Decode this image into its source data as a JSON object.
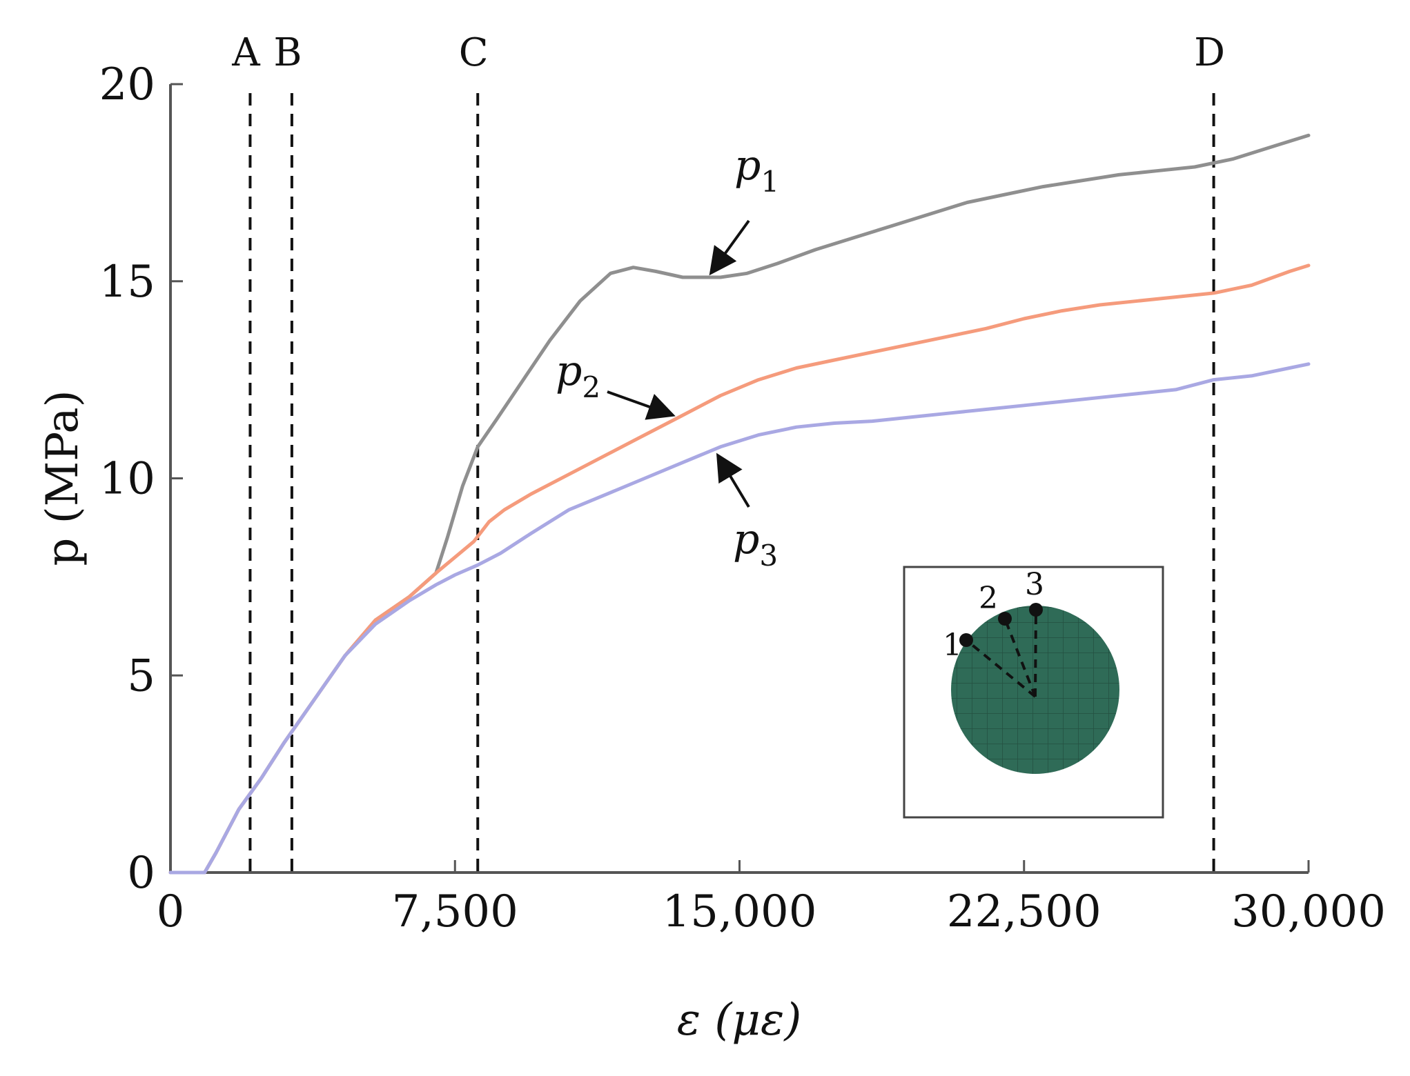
{
  "chart_data": {
    "type": "line",
    "xlabel": "ε (με)",
    "ylabel": "p (MPa)",
    "xlim": [
      0,
      30000
    ],
    "ylim": [
      0,
      20
    ],
    "xticks": [
      0,
      7500,
      15000,
      22500,
      30000
    ],
    "xtick_labels": [
      "0",
      "7,500",
      "15,000",
      "22,500",
      "30,000"
    ],
    "yticks": [
      0,
      5,
      10,
      15,
      20
    ],
    "ytick_labels": [
      "0",
      "5",
      "10",
      "15",
      "20"
    ],
    "grid": false,
    "markers": [
      {
        "label": "A",
        "x": 2100
      },
      {
        "label": "B",
        "x": 3200
      },
      {
        "label": "C",
        "x": 8100
      },
      {
        "label": "D",
        "x": 27500
      }
    ],
    "series": [
      {
        "name": "p1",
        "color": "#8f8f8f",
        "x": [
          0,
          900,
          1200,
          1800,
          2400,
          3000,
          3800,
          4600,
          5400,
          6300,
          7000,
          7300,
          7700,
          8100,
          8600,
          9300,
          10000,
          10800,
          11600,
          12200,
          12800,
          13500,
          14500,
          15200,
          16000,
          17000,
          18000,
          19000,
          20000,
          21000,
          22000,
          23000,
          24000,
          25000,
          26000,
          27000,
          28000,
          29000,
          30000
        ],
        "values": [
          0,
          0,
          0.5,
          1.6,
          2.4,
          3.3,
          4.4,
          5.5,
          6.4,
          7.0,
          7.6,
          8.5,
          9.8,
          10.8,
          11.5,
          12.5,
          13.5,
          14.5,
          15.2,
          15.35,
          15.25,
          15.1,
          15.1,
          15.2,
          15.45,
          15.8,
          16.1,
          16.4,
          16.7,
          17.0,
          17.2,
          17.4,
          17.55,
          17.7,
          17.8,
          17.9,
          18.1,
          18.4,
          18.7
        ]
      },
      {
        "name": "p2",
        "color": "#f59b7c",
        "x": [
          0,
          900,
          1200,
          1800,
          2400,
          3000,
          3800,
          4600,
          5400,
          6300,
          7000,
          7500,
          8000,
          8400,
          8800,
          9500,
          10500,
          11500,
          12500,
          13500,
          14500,
          15500,
          16500,
          17500,
          18500,
          19500,
          20500,
          21500,
          22500,
          23500,
          24500,
          25500,
          26500,
          27500,
          28500,
          29500,
          30000
        ],
        "values": [
          0,
          0,
          0.5,
          1.6,
          2.4,
          3.3,
          4.4,
          5.5,
          6.4,
          7.0,
          7.6,
          8.0,
          8.4,
          8.9,
          9.2,
          9.6,
          10.1,
          10.6,
          11.1,
          11.6,
          12.1,
          12.5,
          12.8,
          13.0,
          13.2,
          13.4,
          13.6,
          13.8,
          14.05,
          14.25,
          14.4,
          14.5,
          14.6,
          14.7,
          14.9,
          15.25,
          15.4
        ]
      },
      {
        "name": "p3",
        "color": "#a9a8e3",
        "x": [
          0,
          900,
          1200,
          1800,
          2400,
          3000,
          3800,
          4600,
          5400,
          6300,
          7000,
          7500,
          8100,
          8700,
          9500,
          10500,
          11500,
          12500,
          13500,
          14500,
          15500,
          16500,
          17500,
          18500,
          19500,
          20500,
          21500,
          22500,
          23500,
          24500,
          25500,
          26500,
          27500,
          28500,
          29500,
          30000
        ],
        "values": [
          0,
          0,
          0.5,
          1.6,
          2.4,
          3.3,
          4.4,
          5.5,
          6.3,
          6.9,
          7.3,
          7.55,
          7.8,
          8.1,
          8.6,
          9.2,
          9.6,
          10.0,
          10.4,
          10.8,
          11.1,
          11.3,
          11.4,
          11.45,
          11.55,
          11.65,
          11.75,
          11.85,
          11.95,
          12.05,
          12.15,
          12.25,
          12.5,
          12.6,
          12.8,
          12.9
        ]
      }
    ],
    "annotations": [
      {
        "series": "p1",
        "text": "p",
        "sub": "1"
      },
      {
        "series": "p2",
        "text": "p",
        "sub": "2"
      },
      {
        "series": "p3",
        "text": "p",
        "sub": "3"
      }
    ],
    "inset": {
      "description_labels": [
        "1",
        "2",
        "3"
      ],
      "circle_color": "#2f6b57"
    }
  }
}
